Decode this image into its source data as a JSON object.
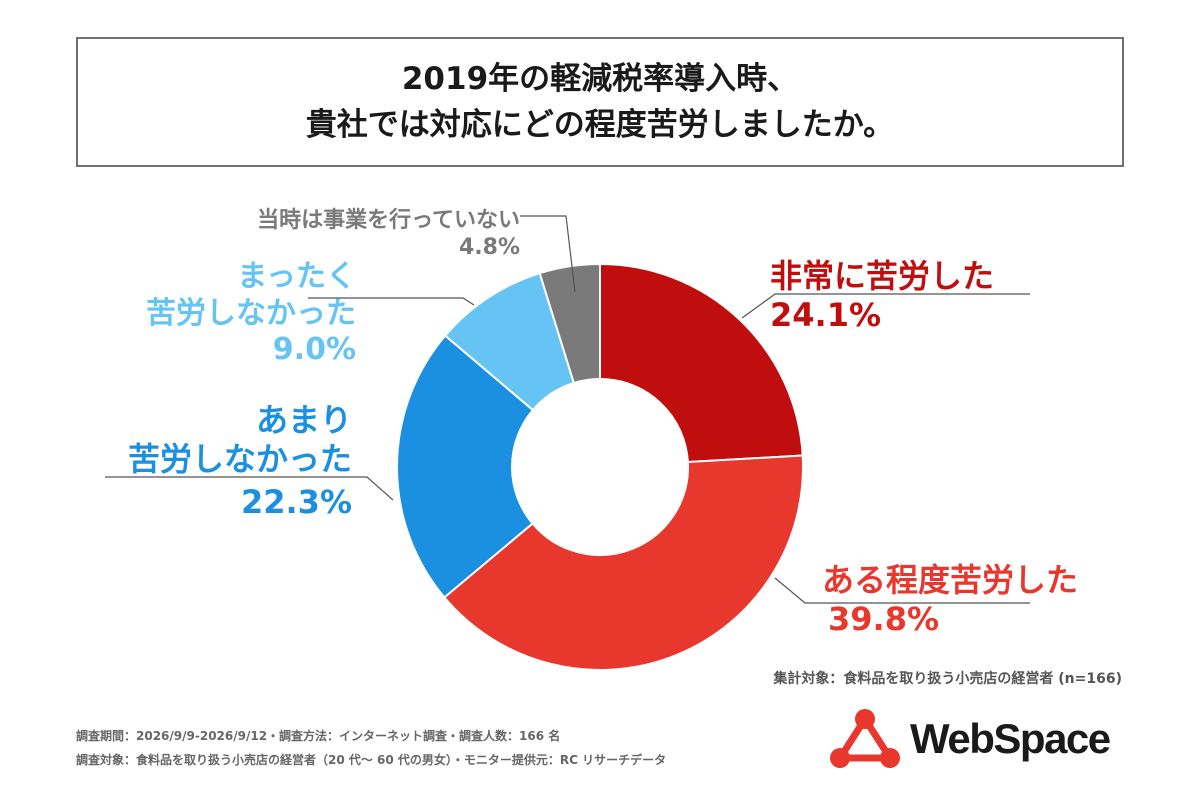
{
  "title": {
    "line1": "2019年の軽減税率導入時、",
    "line2": "貴社では対応にどの程度苦労しましたか。"
  },
  "chart_data": {
    "type": "pie",
    "donut": true,
    "slices": [
      {
        "label": "非常に苦労した",
        "value": 24.1,
        "display": "24.1%",
        "color": "#c00d0d"
      },
      {
        "label": "ある程度苦労した",
        "value": 39.8,
        "display": "39.8%",
        "color": "#e8382e"
      },
      {
        "label": "あまり\n苦労しなかった",
        "value": 22.3,
        "display": "22.3%",
        "color": "#1b8fe0"
      },
      {
        "label": "まったく\n苦労しなかった",
        "value": 9.0,
        "display": "9.0%",
        "color": "#66c4f5"
      },
      {
        "label": "当時は事業を行っていない",
        "value": 4.8,
        "display": "4.8%",
        "color": "#7a7a7a"
      }
    ]
  },
  "labels": {
    "s0": {
      "name": "非常に苦労した",
      "pct": "24.1%",
      "color": "#c00d0d"
    },
    "s1": {
      "name": "ある程度苦労した",
      "pct": "39.8%",
      "color": "#e8382e"
    },
    "s2": {
      "name1": "あまり",
      "name2": "苦労しなかった",
      "pct": "22.3%",
      "color": "#1b8fe0"
    },
    "s3": {
      "name1": "まったく",
      "name2": "苦労しなかった",
      "pct": "9.0%",
      "color": "#66c4f5"
    },
    "s4": {
      "name": "当時は事業を行っていない",
      "pct": "4.8%",
      "color": "#7a7a7a"
    }
  },
  "scope_note": "集計対象：食料品を取り扱う小売店の経営者 (n=166)",
  "footer": {
    "line1": "調査期間：2026/9/9-2026/9/12・調査方法：インターネット調査・調査人数：166 名",
    "line2": "調査対象：食料品を取り扱う小売店の経営者（20 代〜 60 代の男女）・モニター提供元：RC リサーチデータ"
  },
  "logo": {
    "text": "WebSpace",
    "color": "#e8382e"
  }
}
